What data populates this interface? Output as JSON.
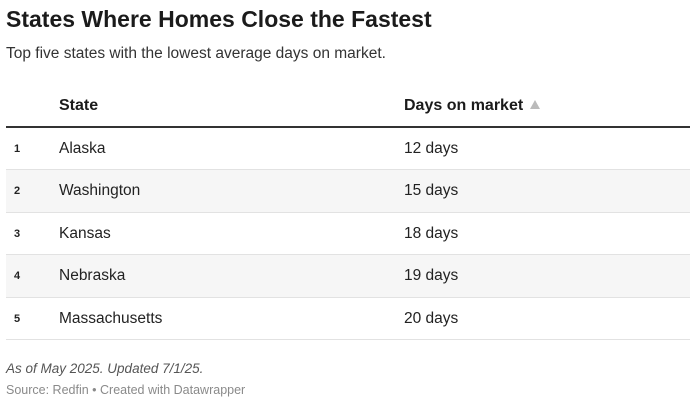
{
  "title": "States Where Homes Close the Fastest",
  "subtitle": "Top five states with the lowest average days on market.",
  "table": {
    "headers": {
      "state": "State",
      "days": "Days on market"
    },
    "sort_icon": "sort-ascending-icon",
    "rows": [
      {
        "rank": "1",
        "state": "Alaska",
        "days": "12 days"
      },
      {
        "rank": "2",
        "state": "Washington",
        "days": "15 days"
      },
      {
        "rank": "3",
        "state": "Kansas",
        "days": "18 days"
      },
      {
        "rank": "4",
        "state": "Nebraska",
        "days": "19 days"
      },
      {
        "rank": "5",
        "state": "Massachusetts",
        "days": "20 days"
      }
    ]
  },
  "chart_data": {
    "type": "table",
    "title": "States Where Homes Close the Fastest",
    "subtitle": "Top five states with the lowest average days on market.",
    "columns": [
      "State",
      "Days on market"
    ],
    "categories": [
      "Alaska",
      "Washington",
      "Kansas",
      "Nebraska",
      "Massachusetts"
    ],
    "values": [
      12,
      15,
      18,
      19,
      20
    ],
    "sorted_by": "Days on market",
    "sort_order": "ascending"
  },
  "footer": {
    "note": "As of May 2025. Updated 7/1/25.",
    "source": "Source: Redfin • Created with Datawrapper"
  },
  "colors": {
    "header_rule": "#333333",
    "alt_row": "#f6f6f6",
    "row_rule": "#e2e2e2",
    "sort_arrow": "#bbbbbb"
  }
}
